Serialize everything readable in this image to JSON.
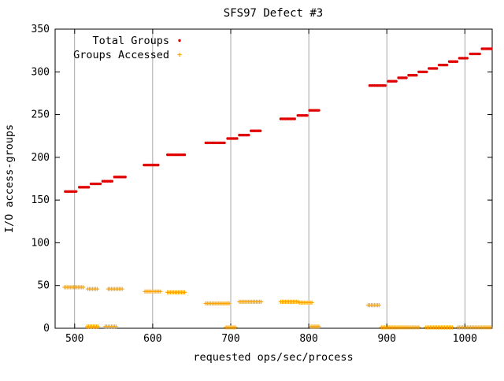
{
  "chart_data": {
    "type": "scatter",
    "title": "SFS97 Defect #3",
    "xlabel": "requested ops/sec/process",
    "ylabel": "I/O access-groups",
    "xlim": [
      475,
      1035
    ],
    "ylim": [
      0,
      350
    ],
    "xticks": [
      500,
      600,
      700,
      800,
      900,
      1000
    ],
    "yticks": [
      0,
      50,
      100,
      150,
      200,
      250,
      300,
      350
    ],
    "grid": "vertical-at-xticks",
    "legend": {
      "position": "top-left-inside",
      "entries": [
        "Total Groups",
        "Groups Accessed"
      ]
    },
    "series": [
      {
        "name": "Total Groups",
        "color": "#e00000",
        "marker": "dot",
        "x_step": 2,
        "clusters": [
          [
            488,
            502,
            160
          ],
          [
            506,
            518,
            165
          ],
          [
            521,
            533,
            169
          ],
          [
            536,
            548,
            172
          ],
          [
            551,
            566,
            177
          ],
          [
            589,
            607,
            191
          ],
          [
            619,
            641,
            203
          ],
          [
            668,
            692,
            217
          ],
          [
            696,
            708,
            222
          ],
          [
            711,
            723,
            226
          ],
          [
            726,
            738,
            231
          ],
          [
            764,
            783,
            245
          ],
          [
            786,
            798,
            249
          ],
          [
            801,
            813,
            255
          ],
          [
            878,
            898,
            284
          ],
          [
            902,
            912,
            289
          ],
          [
            915,
            925,
            293
          ],
          [
            928,
            938,
            296
          ],
          [
            941,
            951,
            300
          ],
          [
            954,
            964,
            304
          ],
          [
            967,
            977,
            308
          ],
          [
            980,
            990,
            312
          ],
          [
            993,
            1004,
            316
          ],
          [
            1007,
            1019,
            321
          ],
          [
            1022,
            1034,
            327
          ]
        ]
      },
      {
        "name": "Groups Accessed",
        "color": "#ffa500",
        "marker": "plus",
        "x_step": 2,
        "clusters": [
          [
            487,
            512,
            48
          ],
          [
            517,
            529,
            46
          ],
          [
            543,
            562,
            46
          ],
          [
            590,
            610,
            43
          ],
          [
            619,
            641,
            42
          ],
          [
            668,
            698,
            29
          ],
          [
            711,
            739,
            31
          ],
          [
            764,
            786,
            31
          ],
          [
            788,
            805,
            30
          ],
          [
            876,
            891,
            27
          ],
          [
            516,
            531,
            2
          ],
          [
            539,
            554,
            2
          ],
          [
            694,
            706,
            1
          ],
          [
            803,
            814,
            2
          ],
          [
            893,
            942,
            1
          ],
          [
            950,
            985,
            1
          ],
          [
            991,
            1034,
            1
          ]
        ]
      }
    ]
  }
}
